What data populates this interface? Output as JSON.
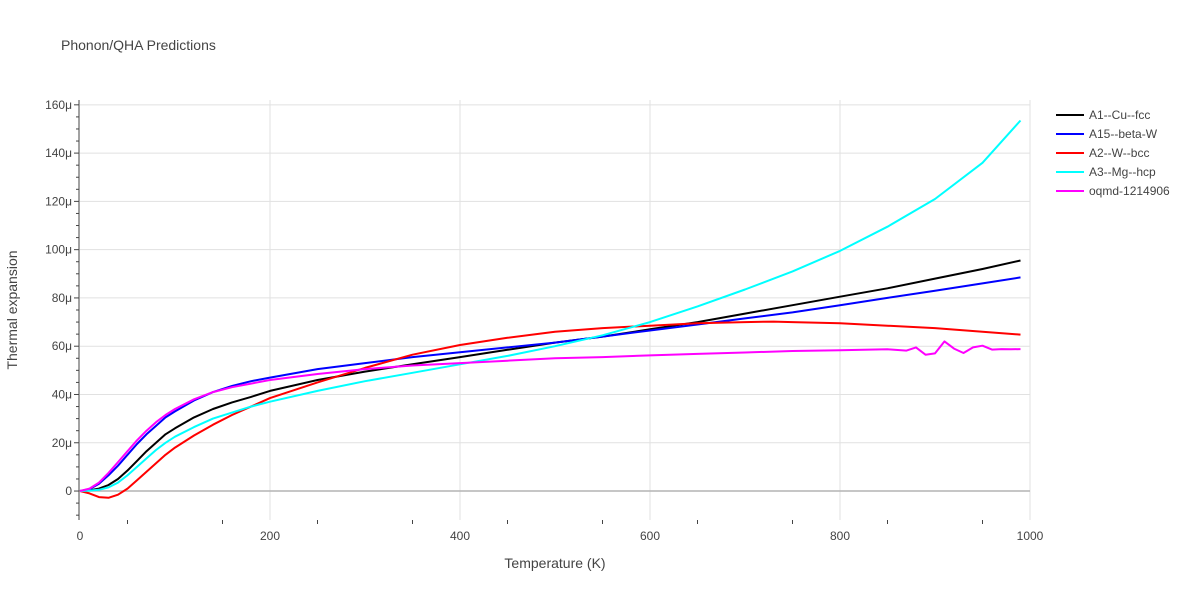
{
  "chart_data": {
    "type": "line",
    "title": "Phonon/QHA Predictions",
    "xlabel": "Temperature (K)",
    "ylabel": "Thermal expansion",
    "xlim": [
      0,
      1000
    ],
    "ylim": [
      -12,
      162
    ],
    "x_ticks": [
      0,
      200,
      400,
      600,
      800,
      1000
    ],
    "x_tick_labels": [
      "0",
      "200",
      "400",
      "600",
      "800",
      "1000"
    ],
    "y_ticks": [
      0,
      20,
      40,
      60,
      80,
      100,
      120,
      140,
      160
    ],
    "y_tick_labels": [
      "0",
      "20μ",
      "40μ",
      "60μ",
      "80μ",
      "100μ",
      "120μ",
      "140μ",
      "160μ"
    ],
    "legend_position": "top-right",
    "series": [
      {
        "name": "A1--Cu--fcc",
        "color": "#000000",
        "x": [
          0,
          10,
          20,
          30,
          40,
          50,
          60,
          70,
          80,
          90,
          100,
          120,
          140,
          160,
          180,
          200,
          250,
          300,
          350,
          400,
          450,
          500,
          550,
          600,
          650,
          700,
          750,
          800,
          850,
          900,
          950,
          990
        ],
        "y": [
          0,
          0.3,
          1,
          2.5,
          5,
          8.5,
          12.5,
          16.5,
          20,
          23.5,
          26,
          30.5,
          34,
          36.7,
          39,
          41.5,
          46,
          49.5,
          52.5,
          55.5,
          58.5,
          61.5,
          64,
          67,
          70,
          73.5,
          77,
          80.5,
          84,
          88,
          92,
          95.5
        ]
      },
      {
        "name": "A15--beta-W",
        "color": "#0000ff",
        "x": [
          0,
          10,
          20,
          30,
          40,
          50,
          60,
          70,
          80,
          90,
          100,
          120,
          140,
          160,
          180,
          200,
          250,
          300,
          350,
          400,
          450,
          500,
          550,
          600,
          650,
          700,
          750,
          800,
          850,
          900,
          950,
          990
        ],
        "y": [
          0,
          0.8,
          3,
          6.5,
          10.5,
          15,
          19.5,
          23.5,
          27,
          30.5,
          33,
          37.5,
          41,
          43.5,
          45.5,
          47,
          50.5,
          53,
          55.5,
          57.5,
          59.5,
          61.5,
          64,
          66.5,
          69,
          71.5,
          74,
          77,
          80,
          83,
          86,
          88.5
        ]
      },
      {
        "name": "A2--W--bcc",
        "color": "#ff0000",
        "x": [
          0,
          10,
          20,
          30,
          40,
          50,
          60,
          70,
          80,
          90,
          100,
          120,
          140,
          160,
          180,
          200,
          250,
          300,
          350,
          400,
          450,
          500,
          550,
          600,
          650,
          700,
          730,
          750,
          800,
          850,
          900,
          950,
          990
        ],
        "y": [
          0,
          -1,
          -2.5,
          -2.8,
          -1.5,
          1,
          4.5,
          8,
          11.5,
          15,
          18,
          23,
          27.5,
          31.5,
          35,
          38.5,
          45,
          51,
          56.5,
          60.5,
          63.5,
          66,
          67.5,
          68.5,
          69.5,
          70,
          70.2,
          70,
          69.5,
          68.5,
          67.5,
          66,
          64.8
        ]
      },
      {
        "name": "A3--Mg--hcp",
        "color": "#00ffff",
        "x": [
          0,
          10,
          20,
          30,
          40,
          50,
          60,
          70,
          80,
          90,
          100,
          120,
          140,
          160,
          180,
          200,
          250,
          300,
          350,
          400,
          450,
          500,
          550,
          600,
          650,
          700,
          750,
          800,
          850,
          900,
          950,
          990
        ],
        "y": [
          0,
          0.2,
          0.5,
          1.5,
          3.5,
          6.5,
          10,
          13.5,
          17,
          20,
          22.5,
          26.5,
          30,
          32.5,
          35,
          37,
          41.5,
          45.5,
          49,
          52.5,
          56,
          60,
          64.5,
          70,
          76.5,
          83.5,
          91,
          99.5,
          109.5,
          121,
          136,
          153.5
        ]
      },
      {
        "name": "oqmd-1214906",
        "color": "#ff00ff",
        "x": [
          0,
          10,
          20,
          30,
          40,
          50,
          60,
          70,
          80,
          90,
          100,
          120,
          140,
          160,
          180,
          200,
          250,
          300,
          350,
          400,
          450,
          500,
          550,
          600,
          650,
          700,
          750,
          800,
          850,
          870,
          880,
          890,
          900,
          910,
          920,
          930,
          940,
          950,
          960,
          970,
          980,
          990
        ],
        "y": [
          0,
          1,
          3.5,
          7.5,
          12,
          16.5,
          21,
          25,
          28.5,
          31.5,
          34,
          38,
          41,
          43,
          44.5,
          46,
          48.5,
          50.5,
          52,
          53,
          54,
          55,
          55.5,
          56.2,
          56.8,
          57.4,
          58,
          58.3,
          58.7,
          58.2,
          59.5,
          56.5,
          57,
          62,
          59,
          57.2,
          59.5,
          60.2,
          58.6,
          58.8,
          58.7,
          58.8
        ]
      }
    ]
  }
}
